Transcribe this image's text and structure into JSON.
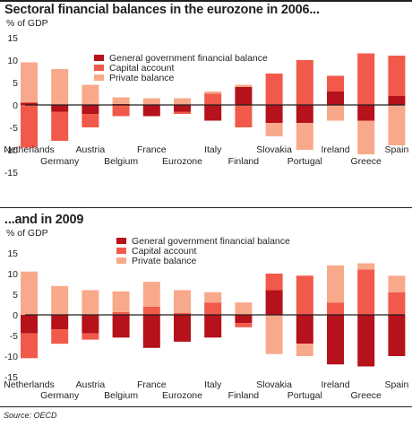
{
  "source": "Source: OECD",
  "colors": {
    "government": "#b5121b",
    "capital": "#f15a4a",
    "private": "#f9a98b",
    "axis": "#231f20"
  },
  "chart_data": [
    {
      "type": "bar",
      "stacked": true,
      "title": "Sectoral financial balances in the eurozone in 2006...",
      "ylabel": "% of GDP",
      "ylim": [
        -15,
        15
      ],
      "yticks": [
        15,
        10,
        5,
        0,
        -5,
        -10,
        -15
      ],
      "legend_position": "top-center",
      "categories": [
        "Netherlands",
        "Germany",
        "Austria",
        "Belgium",
        "France",
        "Eurozone",
        "Italy",
        "Finland",
        "Slovakia",
        "Portugal",
        "Ireland",
        "Greece",
        "Spain"
      ],
      "series": [
        {
          "name": "General government financial balance",
          "values": [
            0.5,
            -1.5,
            -2,
            0.2,
            -2.5,
            -1.5,
            -3.5,
            4,
            -4,
            -4,
            3,
            -3.5,
            2
          ]
        },
        {
          "name": "Capital account",
          "values": [
            -9.5,
            -6.5,
            -3,
            -2.5,
            0,
            -0.5,
            2.5,
            -5,
            7,
            10,
            3.5,
            11.5,
            9
          ]
        },
        {
          "name": "Private balance",
          "values": [
            9,
            8,
            4.5,
            1.5,
            1.5,
            1.5,
            0.5,
            0.5,
            -3,
            -6,
            -3.5,
            -7.5,
            -9
          ]
        }
      ]
    },
    {
      "type": "bar",
      "stacked": true,
      "title": "...and in 2009",
      "ylabel": "% of GDP",
      "ylim": [
        -15,
        15
      ],
      "yticks": [
        15,
        10,
        5,
        0,
        -5,
        -10,
        -15
      ],
      "legend_position": "top-center",
      "categories": [
        "Netherlands",
        "Germany",
        "Austria",
        "Belgium",
        "France",
        "Eurozone",
        "Italy",
        "Finland",
        "Slovakia",
        "Portugal",
        "Ireland",
        "Greece",
        "Spain"
      ],
      "series": [
        {
          "name": "General government financial balance",
          "values": [
            -4.5,
            -3.5,
            -4.5,
            -5.5,
            -8,
            -6.5,
            -5.5,
            -2,
            6,
            -7,
            -12,
            -12.5,
            -10
          ]
        },
        {
          "name": "Capital account",
          "values": [
            -6,
            -3.5,
            -1.5,
            0.7,
            2,
            0.5,
            3,
            -1,
            4,
            9.5,
            3,
            11,
            5.5
          ]
        },
        {
          "name": "Private balance",
          "values": [
            10.5,
            7,
            6,
            5,
            6,
            5.5,
            2.5,
            3,
            -9.5,
            -3,
            9,
            1.5,
            4
          ]
        }
      ]
    }
  ]
}
